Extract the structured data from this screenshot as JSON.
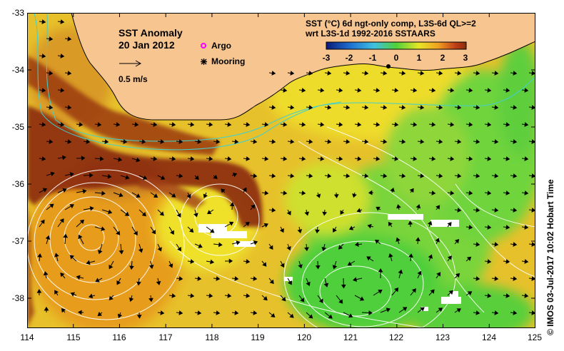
{
  "title": {
    "line1": "SST Anomaly",
    "line2": "20 Jan 2012"
  },
  "scale": {
    "label": "0.5 m/s",
    "speed": 0.5
  },
  "legend": {
    "argo": "Argo",
    "mooring": "Mooring",
    "argo_color": "#ff00ff",
    "mooring_color": "#000000"
  },
  "colorbar": {
    "title1": "SST (°C) 6d ngt-only comp, L3S-6d QL>=2",
    "title2": "wrt L3S-1d 1992-2016 SSTAARS",
    "ticks": [
      "-3",
      "-2",
      "-1",
      "0",
      "1",
      "2",
      "3"
    ],
    "range": [
      -3,
      3
    ],
    "colors": [
      "#0a1a7a",
      "#1f6fd0",
      "#3fc0e0",
      "#4fd13a",
      "#e6e626",
      "#f0a020",
      "#c0401a",
      "#8a2a0a"
    ]
  },
  "axes": {
    "lon_ticks": [
      "114",
      "115",
      "116",
      "117",
      "118",
      "119",
      "120",
      "121",
      "122",
      "123",
      "124",
      "125"
    ],
    "lat_ticks": [
      "-33",
      "-34",
      "-35",
      "-36",
      "-37",
      "-38"
    ],
    "lon_range": [
      114,
      125
    ],
    "lat_range": [
      -38.5,
      -33
    ]
  },
  "credit": "© IMOS 03-Jul-2017 10:02 Hobart Time",
  "colors": {
    "land": "#f7c590",
    "contour": "#ffffff",
    "shelf": "#40d0d0",
    "warm": "#8a2a0a",
    "cool": "#4fd13a"
  }
}
